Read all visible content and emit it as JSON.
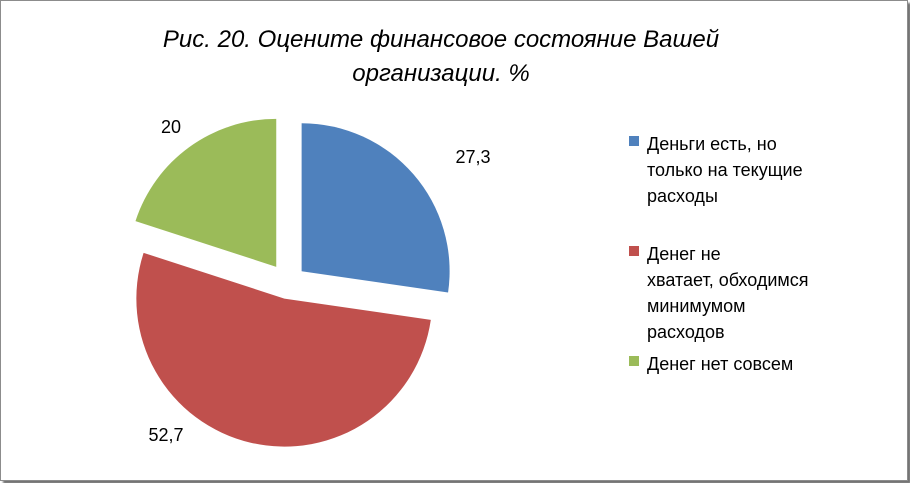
{
  "chart_data": {
    "type": "pie",
    "title": "Рис. 20. Оцените финансовое состояние Вашей организации. %",
    "title_lines": [
      "Рис. 20. Оцените финансовое состояние Вашей",
      "организации. %"
    ],
    "series": [
      {
        "values": [
          27.3,
          52.7,
          20
        ],
        "value_labels": [
          "27,3",
          "52,7",
          "20"
        ]
      }
    ],
    "categories": [
      "Деньги есть, но только на текущие расходы",
      "Денег не хватает, обходимся минимумом расходов",
      "Денег нет совсем"
    ],
    "colors": [
      "#4f81bd",
      "#c0504d",
      "#9bbb59"
    ],
    "exploded": true,
    "legend_position": "right"
  },
  "legend": [
    {
      "lines": [
        "Деньги есть, но",
        "только на текущие",
        "расходы"
      ]
    },
    {
      "lines": [
        "Денег не",
        "хватает, обходимся",
        "минимумом",
        "расходов"
      ]
    },
    {
      "lines": [
        "Денег нет совсем"
      ]
    }
  ]
}
